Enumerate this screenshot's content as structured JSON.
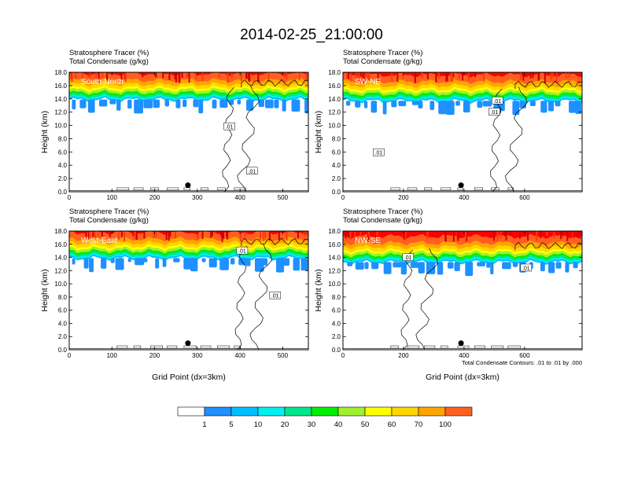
{
  "title": "2014-02-25_21:00:00",
  "colors": {
    "scale": [
      "#ffffff",
      "#1e90ff",
      "#00bfff",
      "#00f0f0",
      "#00e68c",
      "#00ee00",
      "#a0f030",
      "#ffff00",
      "#ffd700",
      "#ffa500",
      "#ff6020",
      "#ff0000"
    ],
    "contour": "#000000"
  },
  "chart_data": [
    {
      "type": "heatmap",
      "region": "South-North",
      "label1": "Stratosphere Tracer   (%)",
      "label2": "Total Condensate   (g/kg)",
      "ylabel": "Height (km)",
      "xlabel": "",
      "xlim": [
        0,
        560
      ],
      "ylim": [
        0,
        18
      ],
      "xticks": [
        "0",
        "100",
        "200",
        "300",
        "400",
        "500"
      ],
      "yticks": [
        "0.0",
        "2.0",
        "4.0",
        "6.0",
        "8.0",
        "10.0",
        "12.0",
        "14.0",
        "16.0",
        "18.0"
      ],
      "tropopause_km": 15.2,
      "contour_labels": [
        {
          "text": ".01",
          "x": 375,
          "y": 9.8
        },
        {
          "text": ".01",
          "x": 428,
          "y": 3.1
        }
      ],
      "marker": {
        "x": 278,
        "y": 1.0
      },
      "note": ""
    },
    {
      "type": "heatmap",
      "region": "SW-NE",
      "label1": "Stratosphere Tracer   (%)",
      "label2": "Total Condensate   (g/kg)",
      "ylabel": "Height (km)",
      "xlabel": "",
      "xlim": [
        0,
        790
      ],
      "ylim": [
        0,
        18
      ],
      "xticks": [
        "0",
        "200",
        "400",
        "600"
      ],
      "yticks": [
        "0.0",
        "2.0",
        "4.0",
        "6.0",
        "8.0",
        "10.0",
        "12.0",
        "14.0",
        "16.0",
        "18.0"
      ],
      "tropopause_km": 15.0,
      "contour_labels": [
        {
          "text": ".01",
          "x": 510,
          "y": 13.7
        },
        {
          "text": ".01",
          "x": 500,
          "y": 12.0
        },
        {
          "text": ".01",
          "x": 118,
          "y": 5.9
        }
      ],
      "marker": {
        "x": 390,
        "y": 1.0
      },
      "note": ""
    },
    {
      "type": "heatmap",
      "region": "West-East",
      "label1": "Stratosphere Tracer   (%)",
      "label2": "Total Condensate   (g/kg)",
      "ylabel": "Height (km)",
      "xlabel": "Grid Point (dx=3km)",
      "xlim": [
        0,
        560
      ],
      "ylim": [
        0,
        18
      ],
      "xticks": [
        "0",
        "100",
        "200",
        "300",
        "400",
        "500"
      ],
      "yticks": [
        "0.0",
        "2.0",
        "4.0",
        "6.0",
        "8.0",
        "10.0",
        "12.0",
        "14.0",
        "16.0",
        "18.0"
      ],
      "tropopause_km": 15.2,
      "contour_labels": [
        {
          "text": ".01",
          "x": 405,
          "y": 15.0
        },
        {
          "text": ".01",
          "x": 482,
          "y": 8.2
        }
      ],
      "marker": {
        "x": 278,
        "y": 1.0
      },
      "note": ""
    },
    {
      "type": "heatmap",
      "region": "NW-SE",
      "label1": "Stratosphere Tracer   (%)",
      "label2": "Total Condensate   (g/kg)",
      "ylabel": "Height (km)",
      "xlabel": "Grid Point (dx=3km)",
      "xlim": [
        0,
        790
      ],
      "ylim": [
        0,
        18
      ],
      "xticks": [
        "0",
        "200",
        "400",
        "600"
      ],
      "yticks": [
        "0.0",
        "2.0",
        "4.0",
        "6.0",
        "8.0",
        "10.0",
        "12.0",
        "14.0",
        "16.0",
        "18.0"
      ],
      "tropopause_km": 14.6,
      "contour_labels": [
        {
          "text": ".01",
          "x": 215,
          "y": 14.0
        },
        {
          "text": ".01",
          "x": 605,
          "y": 12.4
        }
      ],
      "marker": {
        "x": 390,
        "y": 1.0
      },
      "note": "Total Condensate Contours: .01 to .01 by .000"
    }
  ],
  "colorbar": {
    "labels": [
      "1",
      "5",
      "10",
      "20",
      "30",
      "40",
      "50",
      "60",
      "70",
      "100"
    ]
  }
}
